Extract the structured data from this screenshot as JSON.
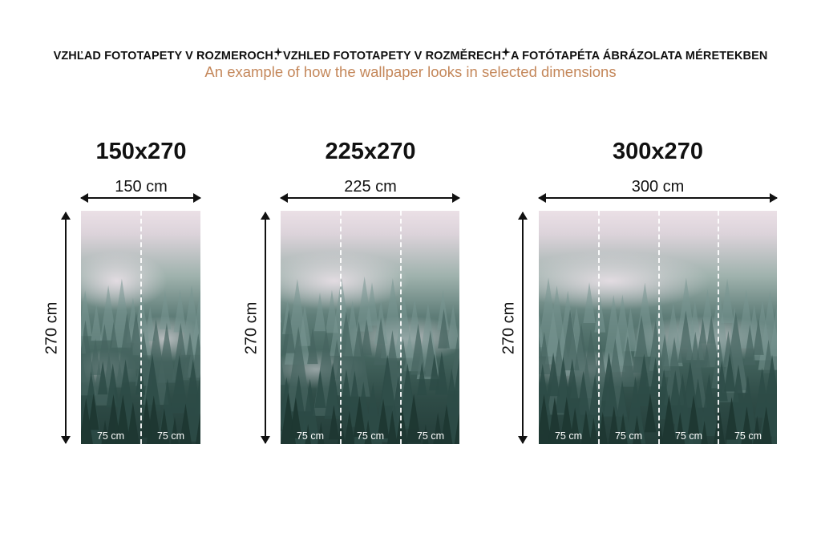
{
  "header": {
    "languages": [
      "VZHĽAD FOTOTAPETY V ROZMEROCH",
      "VZHLED FOTOTAPETY V ROZMĚRECH",
      "A FOTÓTAPÉTA ÁBRÁZOLATA MÉRETEKBEN"
    ],
    "separator_icon": "sparkle-icon",
    "subtitle": "An example of how the wallpaper looks in selected dimensions",
    "subtitle_color": "#c4875a"
  },
  "variants": [
    {
      "title": "150x270",
      "width_label": "150 cm",
      "height_label": "270 cm",
      "panels": [
        "75 cm",
        "75 cm"
      ]
    },
    {
      "title": "225x270",
      "width_label": "225 cm",
      "height_label": "270 cm",
      "panels": [
        "75 cm",
        "75 cm",
        "75 cm"
      ]
    },
    {
      "title": "300x270",
      "width_label": "300 cm",
      "height_label": "270 cm",
      "panels": [
        "75 cm",
        "75 cm",
        "75 cm",
        "75 cm"
      ]
    }
  ]
}
